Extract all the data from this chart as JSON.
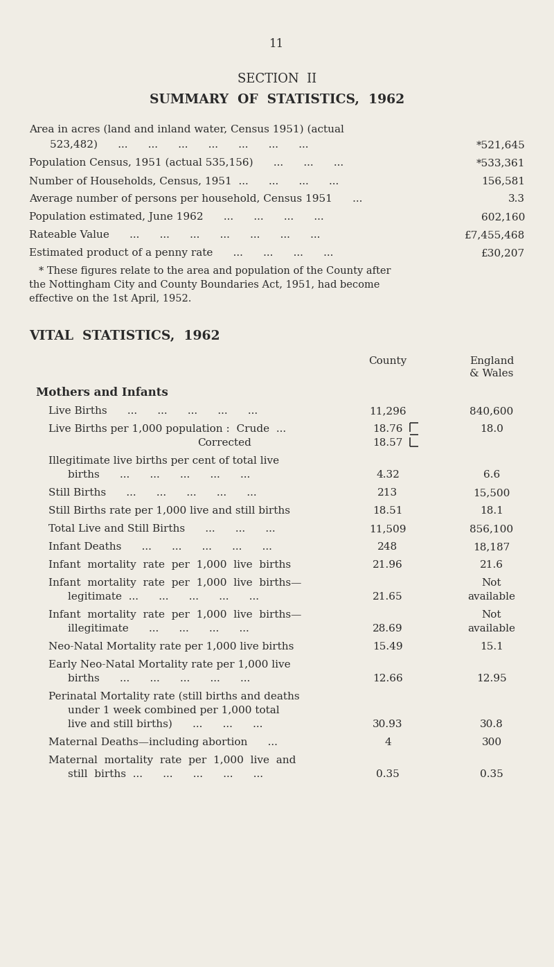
{
  "bg_color": "#f0ede5",
  "text_color": "#2a2a2a",
  "page_number": "11",
  "section_title": "SECTION  II",
  "main_title": "SUMMARY  OF  STATISTICS,  1962",
  "vital_title": "VITAL  STATISTICS,  1962"
}
